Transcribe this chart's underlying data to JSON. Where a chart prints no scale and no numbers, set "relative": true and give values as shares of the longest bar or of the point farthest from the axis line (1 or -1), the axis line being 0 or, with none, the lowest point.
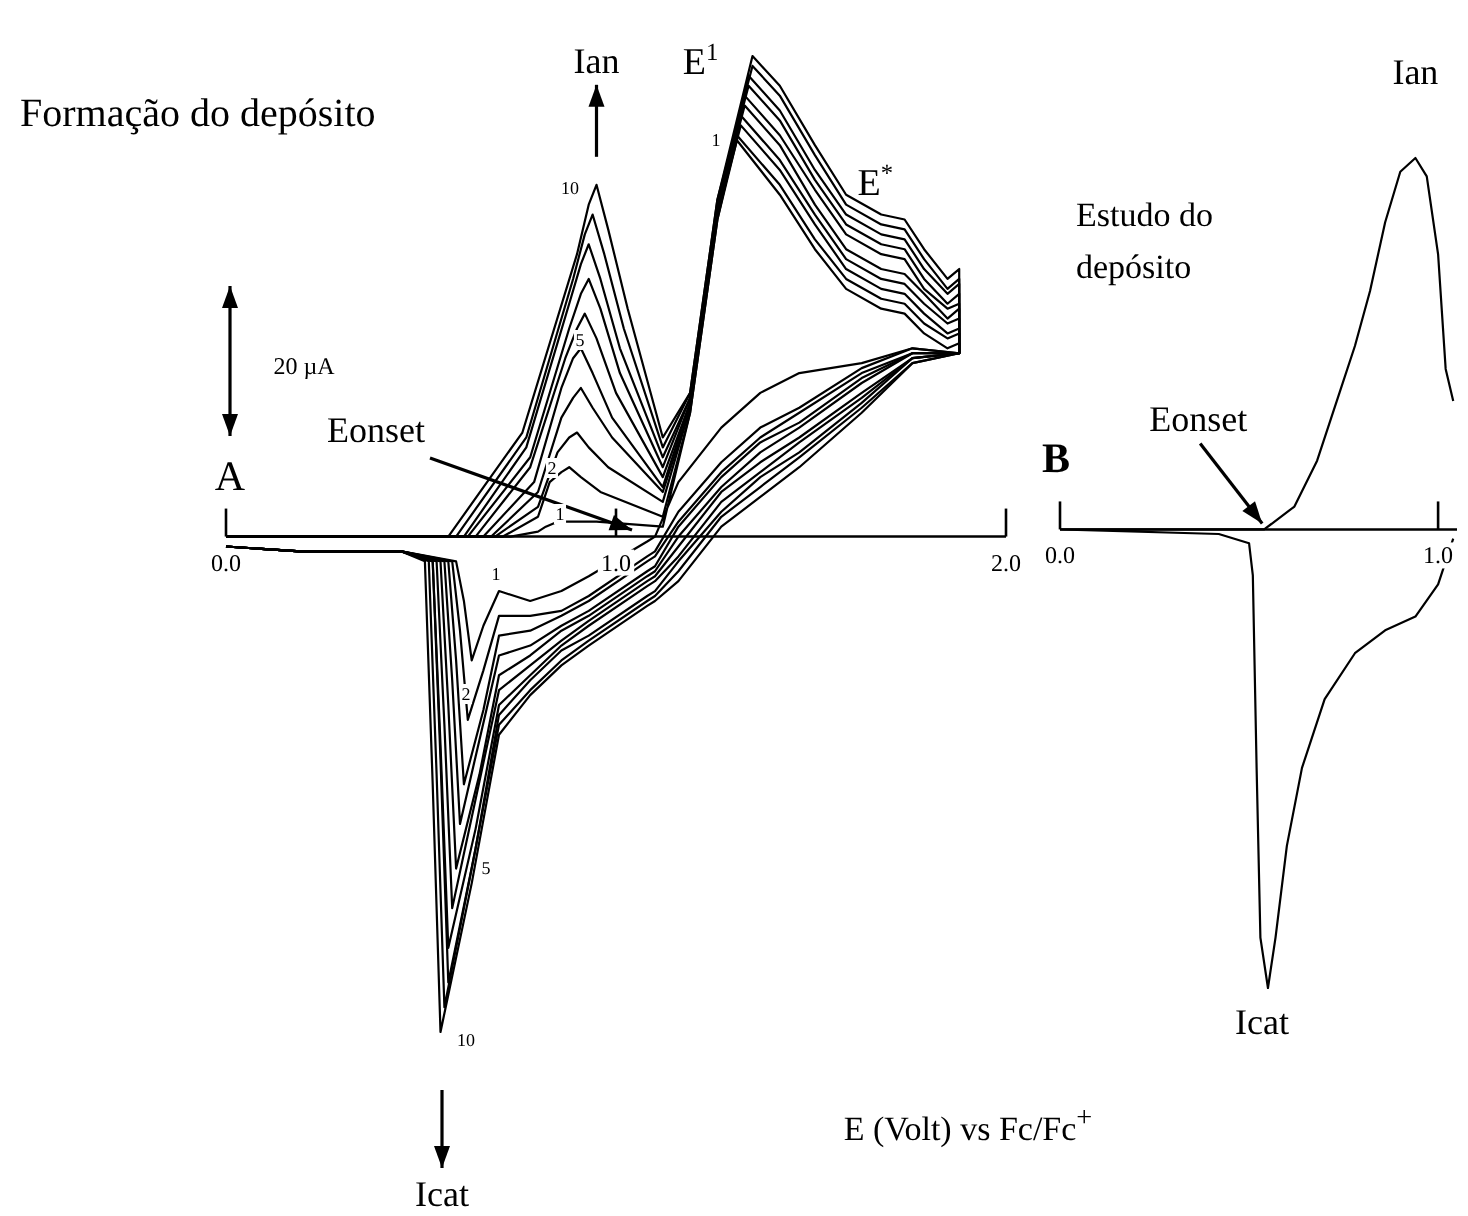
{
  "chart_data": [
    {
      "type": "line",
      "title": "Formação do depósito",
      "xlabel": "E (Volt) vs Fc/Fc$^{+}$",
      "relative": true,
      "xlim": [
        0,
        2
      ],
      "xticks": [
        {
          "value": 0,
          "label": "0.0"
        },
        {
          "value": 1,
          "label": "1.0"
        },
        {
          "value": 2,
          "label": "2.0"
        }
      ],
      "series": [
        {
          "color": "#000000",
          "x": [
            0,
            0.45,
            0.73,
            0.8,
            0.82,
            0.85,
            0.87,
            0.9,
            0.95,
            1.12,
            1.19,
            1.26,
            1.31,
            1.42,
            1.51,
            1.59,
            1.68,
            1.74,
            1.79,
            1.85,
            1.88,
            1.88,
            1.76,
            1.63,
            1.47,
            1.37,
            1.27,
            1.16,
            1.1,
            1.08,
            0.93,
            0.86,
            0.78,
            0.7,
            0.66,
            0.63,
            0.61,
            0.59,
            0.45,
            0.19,
            0
          ],
          "values": [
            0,
            0,
            0,
            0.01,
            0.02,
            0.03,
            0.03,
            0.03,
            0.03,
            0.02,
            0.25,
            0.64,
            0.8,
            0.69,
            0.58,
            0.5,
            0.46,
            0.45,
            0.41,
            0.38,
            0.39,
            0.37,
            0.38,
            0.35,
            0.33,
            0.29,
            0.22,
            0.11,
            0.0,
            -0.01,
            -0.08,
            -0.11,
            -0.13,
            -0.11,
            -0.18,
            -0.25,
            -0.13,
            -0.05,
            -0.03,
            -0.03,
            -0.02
          ]
        },
        {
          "color": "#000000",
          "x": [
            0,
            0.45,
            0.71,
            0.8,
            0.83,
            0.86,
            0.88,
            0.91,
            0.96,
            1.12,
            1.19,
            1.26,
            1.31,
            1.42,
            1.51,
            1.59,
            1.68,
            1.74,
            1.79,
            1.85,
            1.88,
            1.88,
            1.76,
            1.63,
            1.47,
            1.37,
            1.27,
            1.16,
            1.1,
            1.08,
            0.93,
            0.86,
            0.78,
            0.7,
            0.66,
            0.62,
            0.6,
            0.58,
            0.45,
            0.19,
            0
          ],
          "values": [
            0,
            0,
            0,
            0.04,
            0.11,
            0.13,
            0.14,
            0.12,
            0.09,
            0.04,
            0.25,
            0.64,
            0.81,
            0.71,
            0.6,
            0.52,
            0.48,
            0.47,
            0.43,
            0.4,
            0.41,
            0.37,
            0.38,
            0.34,
            0.26,
            0.22,
            0.15,
            0.05,
            -0.03,
            -0.04,
            -0.12,
            -0.15,
            -0.16,
            -0.16,
            -0.27,
            -0.37,
            -0.19,
            -0.05,
            -0.03,
            -0.03,
            -0.02
          ]
        },
        {
          "color": "#000000",
          "x": [
            0,
            0.45,
            0.69,
            0.8,
            0.85,
            0.88,
            0.9,
            0.93,
            0.98,
            1.12,
            1.19,
            1.26,
            1.32,
            1.42,
            1.51,
            1.59,
            1.68,
            1.74,
            1.79,
            1.85,
            1.88,
            1.88,
            1.76,
            1.63,
            1.47,
            1.37,
            1.27,
            1.16,
            1.1,
            1.08,
            0.93,
            0.86,
            0.78,
            0.7,
            0.66,
            0.61,
            0.59,
            0.57,
            0.45,
            0.19,
            0
          ],
          "values": [
            0,
            0,
            0,
            0.06,
            0.17,
            0.2,
            0.21,
            0.18,
            0.14,
            0.07,
            0.26,
            0.65,
            0.83,
            0.74,
            0.63,
            0.54,
            0.5,
            0.49,
            0.45,
            0.41,
            0.42,
            0.37,
            0.37,
            0.33,
            0.25,
            0.2,
            0.13,
            0.03,
            -0.04,
            -0.05,
            -0.13,
            -0.16,
            -0.19,
            -0.2,
            -0.35,
            -0.5,
            -0.25,
            -0.05,
            -0.03,
            -0.03,
            -0.02
          ]
        },
        {
          "color": "#000000",
          "x": [
            0,
            0.45,
            0.68,
            0.8,
            0.86,
            0.89,
            0.91,
            0.94,
            0.99,
            1.12,
            1.19,
            1.26,
            1.32,
            1.42,
            1.51,
            1.59,
            1.68,
            1.74,
            1.79,
            1.85,
            1.88,
            1.88,
            1.76,
            1.63,
            1.47,
            1.37,
            1.27,
            1.16,
            1.1,
            1.08,
            0.93,
            0.86,
            0.78,
            0.7,
            0.65,
            0.6,
            0.58,
            0.56,
            0.45,
            0.19,
            0
          ],
          "values": [
            0,
            0,
            0,
            0.09,
            0.24,
            0.28,
            0.3,
            0.26,
            0.2,
            0.09,
            0.26,
            0.65,
            0.85,
            0.76,
            0.65,
            0.56,
            0.52,
            0.51,
            0.47,
            0.43,
            0.44,
            0.37,
            0.37,
            0.32,
            0.23,
            0.19,
            0.12,
            0.02,
            -0.06,
            -0.07,
            -0.15,
            -0.18,
            -0.22,
            -0.24,
            -0.41,
            -0.58,
            -0.29,
            -0.05,
            -0.03,
            -0.03,
            -0.02
          ]
        },
        {
          "color": "#000000",
          "x": [
            0,
            0.45,
            0.66,
            0.79,
            0.86,
            0.89,
            0.91,
            0.94,
            0.99,
            1.12,
            1.19,
            1.26,
            1.33,
            1.42,
            1.51,
            1.59,
            1.68,
            1.74,
            1.79,
            1.85,
            1.88,
            1.88,
            1.76,
            1.63,
            1.47,
            1.37,
            1.27,
            1.16,
            1.1,
            1.08,
            0.93,
            0.86,
            0.78,
            0.7,
            0.65,
            0.59,
            0.57,
            0.55,
            0.45,
            0.19,
            0
          ],
          "values": [
            0,
            0,
            0,
            0.11,
            0.3,
            0.36,
            0.38,
            0.33,
            0.24,
            0.1,
            0.27,
            0.66,
            0.87,
            0.79,
            0.67,
            0.58,
            0.54,
            0.53,
            0.49,
            0.44,
            0.46,
            0.37,
            0.37,
            0.31,
            0.22,
            0.17,
            0.1,
            0.0,
            -0.07,
            -0.08,
            -0.16,
            -0.19,
            -0.24,
            -0.28,
            -0.48,
            -0.67,
            -0.34,
            -0.05,
            -0.03,
            -0.03,
            -0.02
          ]
        },
        {
          "color": "#000000",
          "x": [
            0,
            0.45,
            0.64,
            0.78,
            0.87,
            0.9,
            0.92,
            0.95,
            1.0,
            1.12,
            1.19,
            1.26,
            1.33,
            1.42,
            1.51,
            1.59,
            1.68,
            1.74,
            1.79,
            1.85,
            1.88,
            1.88,
            1.76,
            1.63,
            1.47,
            1.37,
            1.27,
            1.16,
            1.1,
            1.08,
            0.93,
            0.86,
            0.78,
            0.7,
            0.64,
            0.58,
            0.56,
            0.54,
            0.45,
            0.19,
            0
          ],
          "values": [
            0,
            0,
            0,
            0.14,
            0.36,
            0.42,
            0.45,
            0.4,
            0.29,
            0.12,
            0.27,
            0.66,
            0.89,
            0.81,
            0.7,
            0.61,
            0.57,
            0.56,
            0.5,
            0.46,
            0.47,
            0.37,
            0.36,
            0.29,
            0.2,
            0.15,
            0.09,
            -0.02,
            -0.08,
            -0.09,
            -0.17,
            -0.21,
            -0.26,
            -0.31,
            -0.53,
            -0.75,
            -0.38,
            -0.05,
            -0.03,
            -0.03,
            -0.02
          ]
        },
        {
          "color": "#000000",
          "x": [
            0,
            0.45,
            0.62,
            0.78,
            0.88,
            0.91,
            0.93,
            0.96,
            1.01,
            1.12,
            1.19,
            1.26,
            1.34,
            1.42,
            1.51,
            1.59,
            1.68,
            1.74,
            1.79,
            1.85,
            1.88,
            1.88,
            1.76,
            1.63,
            1.47,
            1.37,
            1.27,
            1.16,
            1.1,
            1.08,
            0.93,
            0.86,
            0.78,
            0.7,
            0.64,
            0.57,
            0.55,
            0.53,
            0.45,
            0.19,
            0
          ],
          "values": [
            0,
            0,
            0,
            0.16,
            0.42,
            0.49,
            0.52,
            0.46,
            0.33,
            0.14,
            0.28,
            0.67,
            0.91,
            0.84,
            0.72,
            0.63,
            0.59,
            0.58,
            0.52,
            0.47,
            0.49,
            0.37,
            0.36,
            0.28,
            0.19,
            0.13,
            0.07,
            -0.04,
            -0.09,
            -0.1,
            -0.18,
            -0.22,
            -0.28,
            -0.34,
            -0.59,
            -0.83,
            -0.42,
            -0.05,
            -0.03,
            -0.03,
            -0.02
          ]
        },
        {
          "color": "#000000",
          "x": [
            0,
            0.45,
            0.61,
            0.77,
            0.88,
            0.91,
            0.93,
            0.96,
            1.01,
            1.12,
            1.19,
            1.26,
            1.34,
            1.42,
            1.51,
            1.59,
            1.68,
            1.74,
            1.79,
            1.85,
            1.88,
            1.88,
            1.76,
            1.63,
            1.47,
            1.37,
            1.27,
            1.16,
            1.1,
            1.08,
            0.93,
            0.86,
            0.78,
            0.7,
            0.64,
            0.57,
            0.55,
            0.53,
            0.45,
            0.19,
            0
          ],
          "values": [
            0,
            0,
            0,
            0.18,
            0.47,
            0.55,
            0.59,
            0.52,
            0.38,
            0.16,
            0.28,
            0.67,
            0.93,
            0.86,
            0.74,
            0.65,
            0.61,
            0.6,
            0.54,
            0.49,
            0.51,
            0.37,
            0.36,
            0.27,
            0.17,
            0.12,
            0.05,
            -0.05,
            -0.11,
            -0.12,
            -0.2,
            -0.23,
            -0.29,
            -0.36,
            -0.63,
            -0.9,
            -0.45,
            -0.05,
            -0.03,
            -0.03,
            -0.02
          ]
        },
        {
          "color": "#000000",
          "x": [
            0,
            0.45,
            0.59,
            0.77,
            0.89,
            0.92,
            0.94,
            0.97,
            1.02,
            1.12,
            1.19,
            1.26,
            1.35,
            1.42,
            1.51,
            1.59,
            1.68,
            1.74,
            1.79,
            1.85,
            1.88,
            1.88,
            1.76,
            1.63,
            1.47,
            1.37,
            1.27,
            1.16,
            1.1,
            1.08,
            0.93,
            0.86,
            0.78,
            0.7,
            0.63,
            0.56,
            0.54,
            0.52,
            0.45,
            0.19,
            0
          ],
          "values": [
            0,
            0,
            0,
            0.2,
            0.52,
            0.61,
            0.65,
            0.57,
            0.42,
            0.18,
            0.29,
            0.68,
            0.95,
            0.89,
            0.77,
            0.67,
            0.63,
            0.62,
            0.56,
            0.5,
            0.52,
            0.37,
            0.35,
            0.26,
            0.16,
            0.1,
            0.04,
            -0.07,
            -0.12,
            -0.13,
            -0.21,
            -0.25,
            -0.31,
            -0.38,
            -0.67,
            -0.95,
            -0.48,
            -0.05,
            -0.03,
            -0.03,
            -0.02
          ]
        },
        {
          "color": "#000000",
          "x": [
            0,
            0.45,
            0.57,
            0.76,
            0.9,
            0.93,
            0.95,
            0.98,
            1.03,
            1.12,
            1.19,
            1.26,
            1.35,
            1.42,
            1.51,
            1.59,
            1.68,
            1.74,
            1.79,
            1.85,
            1.88,
            1.88,
            1.76,
            1.63,
            1.47,
            1.37,
            1.27,
            1.16,
            1.1,
            1.08,
            0.93,
            0.86,
            0.78,
            0.7,
            0.63,
            0.55,
            0.53,
            0.51,
            0.45,
            0.19,
            0
          ],
          "values": [
            0,
            0,
            0,
            0.21,
            0.57,
            0.67,
            0.71,
            0.62,
            0.46,
            0.2,
            0.29,
            0.68,
            0.97,
            0.91,
            0.79,
            0.69,
            0.65,
            0.64,
            0.58,
            0.52,
            0.54,
            0.37,
            0.35,
            0.25,
            0.14,
            0.08,
            0.02,
            -0.09,
            -0.13,
            -0.14,
            -0.22,
            -0.26,
            -0.32,
            -0.4,
            -0.7,
            -1.0,
            -0.5,
            -0.05,
            -0.03,
            -0.03,
            -0.02
          ]
        }
      ],
      "annotations": [
        {
          "text": "Ian",
          "x": 0.95,
          "y": 0.71
        },
        {
          "text": "E$^{1}$",
          "x": 1.35,
          "y": 0.97
        },
        {
          "text": "E$^{*}$",
          "x": 1.68,
          "y": 0.65
        },
        "Eonset",
        "Icat",
        "10",
        "5",
        "2",
        "1",
        "1",
        "1",
        "2",
        "5",
        "10",
        "20 µA",
        "A"
      ]
    },
    {
      "type": "line",
      "title": "Estudo do depósito",
      "relative": true,
      "xlim": [
        0,
        1.05
      ],
      "xticks": [
        {
          "value": 0,
          "label": "0.0"
        },
        {
          "value": 1,
          "label": "1.0"
        }
      ],
      "series": [
        {
          "color": "#000000",
          "x": [
            0,
            0.42,
            0.54,
            0.62,
            0.68,
            0.74,
            0.78,
            0.82,
            0.86,
            0.9,
            0.94,
            0.97,
            1.0,
            1.02,
            1.04,
            null,
            1.04,
            1.0,
            0.94,
            0.86,
            0.78,
            0.7,
            0.64,
            0.6,
            0.57,
            0.55,
            0.53,
            0.52,
            0.51,
            0.5,
            0.42,
            0
          ],
          "values": [
            0,
            0,
            0,
            0.05,
            0.15,
            0.3,
            0.4,
            0.52,
            0.67,
            0.78,
            0.81,
            0.77,
            0.6,
            0.35,
            0.28,
            null,
            -0.02,
            -0.12,
            -0.19,
            -0.22,
            -0.27,
            -0.37,
            -0.52,
            -0.69,
            -0.89,
            -1.0,
            -0.89,
            -0.52,
            -0.1,
            -0.03,
            -0.01,
            0
          ]
        }
      ],
      "annotations": [
        {
          "text": "Ian",
          "x": 0.94,
          "y": 0.81
        },
        {
          "text": "Eonset",
          "x": 0.54,
          "y": 0
        },
        {
          "text": "Icat",
          "x": 0.55,
          "y": -1.0
        },
        "B"
      ]
    }
  ]
}
